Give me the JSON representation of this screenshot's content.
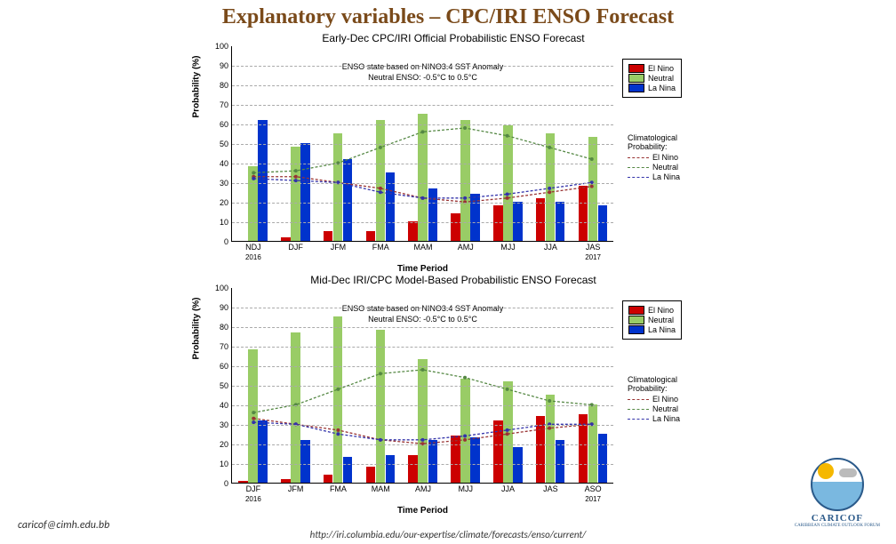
{
  "page_title": "Explanatory variables – CPC/IRI ENSO Forecast",
  "footer_email": "caricof@cimh.edu.bb",
  "footer_url": "http://iri.columbia.edu/our-expertise/climate/forecasts/enso/current/",
  "logo_text": "CARICOF",
  "logo_sub": "CARIBBEAN CLIMATE OUTLOOK FORUM",
  "colors": {
    "el_nino": "#cc0000",
    "neutral": "#99cc66",
    "la_nina": "#0033cc",
    "clim_el_nino": "#993333",
    "clim_neutral": "#558844",
    "clim_la_nina": "#3333aa",
    "grid": "#aaaaaa",
    "bg": "#ffffff"
  },
  "y_axis": {
    "label": "Probability (%)",
    "min": 0,
    "max": 100,
    "step": 10
  },
  "x_axis_label": "Time Period",
  "subtitle_line1": "ENSO state based on NINO3.4 SST Anomaly",
  "subtitle_line2": "Neutral ENSO:  -0.5°C to 0.5°C",
  "legend_bars": [
    "El Nino",
    "Neutral",
    "La Nina"
  ],
  "legend_clim_title": "Climatological Probability:",
  "legend_clim": [
    "El Nino",
    "Neutral",
    "La Nina"
  ],
  "chart1": {
    "title": "Early-Dec CPC/IRI Official Probabilistic ENSO Forecast",
    "categories": [
      "NDJ",
      "DJF",
      "JFM",
      "FMA",
      "MAM",
      "AMJ",
      "MJJ",
      "JJA",
      "JAS"
    ],
    "year_start": "2016",
    "year_end": "2017",
    "el_nino": [
      0,
      2,
      5,
      5,
      10,
      14,
      18,
      22,
      28
    ],
    "neutral": [
      38,
      48,
      55,
      62,
      65,
      62,
      59,
      55,
      53
    ],
    "la_nina": [
      62,
      50,
      42,
      35,
      27,
      24,
      20,
      20,
      18
    ],
    "clim_el_nino": [
      33,
      33,
      30,
      27,
      22,
      20,
      22,
      25,
      28
    ],
    "clim_neutral": [
      35,
      36,
      40,
      48,
      56,
      58,
      54,
      48,
      42
    ],
    "clim_la_nina": [
      32,
      31,
      30,
      25,
      22,
      22,
      24,
      27,
      30
    ]
  },
  "chart2": {
    "title": "Mid-Dec IRI/CPC Model-Based Probabilistic ENSO Forecast",
    "categories": [
      "DJF",
      "JFM",
      "FMA",
      "MAM",
      "AMJ",
      "MJJ",
      "JJA",
      "JAS",
      "ASO"
    ],
    "year_start": "2016",
    "year_end": "2017",
    "el_nino": [
      1,
      2,
      4,
      8,
      14,
      24,
      32,
      34,
      35
    ],
    "neutral": [
      68,
      77,
      85,
      78,
      63,
      53,
      52,
      45,
      40
    ],
    "la_nina": [
      32,
      22,
      13,
      14,
      22,
      23,
      18,
      22,
      25
    ],
    "clim_el_nino": [
      33,
      30,
      27,
      22,
      20,
      22,
      25,
      28,
      30
    ],
    "clim_neutral": [
      36,
      40,
      48,
      56,
      58,
      54,
      48,
      42,
      40
    ],
    "clim_la_nina": [
      31,
      30,
      25,
      22,
      22,
      24,
      27,
      30,
      30
    ]
  }
}
